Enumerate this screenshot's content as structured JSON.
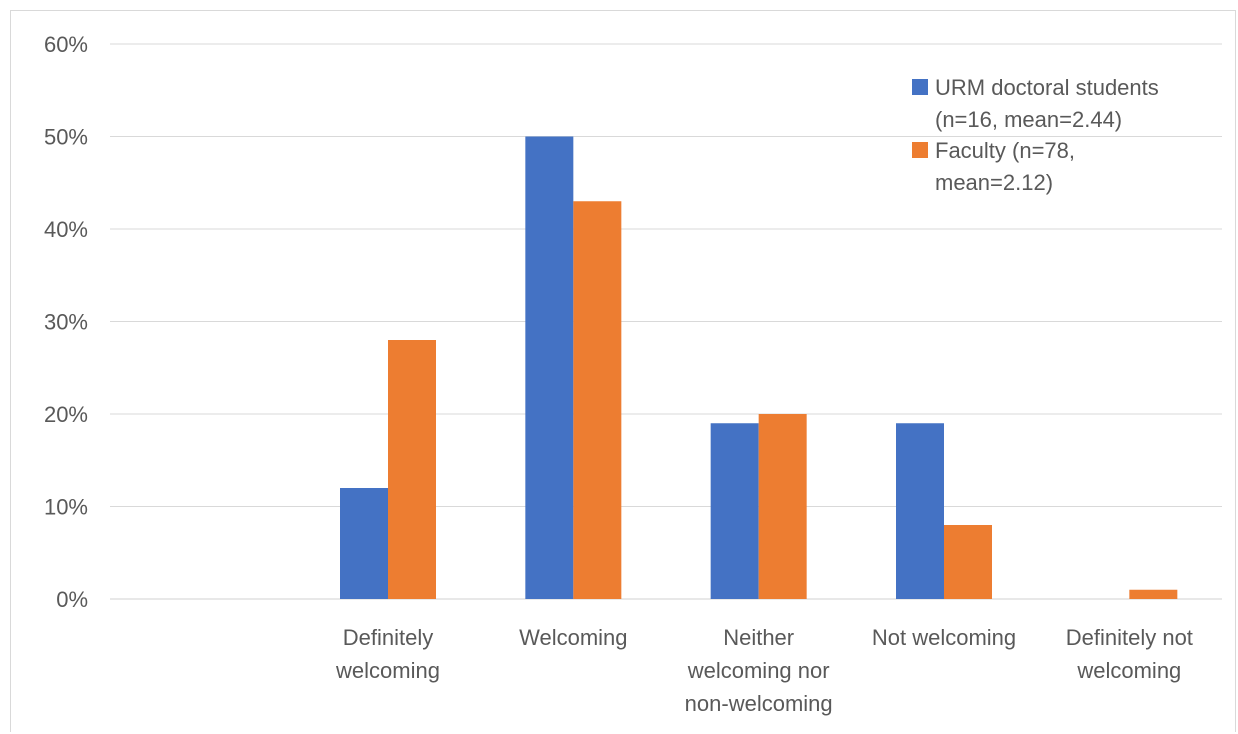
{
  "chart_data": {
    "type": "bar",
    "categories": [
      "",
      [
        "Definitely",
        "welcoming"
      ],
      [
        "Welcoming"
      ],
      [
        "Neither",
        "welcoming nor",
        "non-welcoming"
      ],
      [
        "Not welcoming"
      ],
      [
        "Definitely not",
        "welcoming"
      ]
    ],
    "series": [
      {
        "name": [
          "URM doctoral students",
          "(n=16, mean=2.44)"
        ],
        "values": [
          null,
          12,
          50,
          19,
          19,
          0
        ],
        "color": "#4472C4"
      },
      {
        "name": [
          "Faculty (n=78,",
          "mean=2.12)"
        ],
        "values": [
          null,
          28,
          43,
          20,
          8,
          1
        ],
        "color": "#ED7D31"
      }
    ],
    "yticks": [
      "0%",
      "10%",
      "20%",
      "30%",
      "40%",
      "50%",
      "60%"
    ],
    "ylim": [
      0,
      60
    ],
    "grid": true,
    "legend_position": "top-right",
    "title": "",
    "xlabel": "",
    "ylabel": ""
  }
}
